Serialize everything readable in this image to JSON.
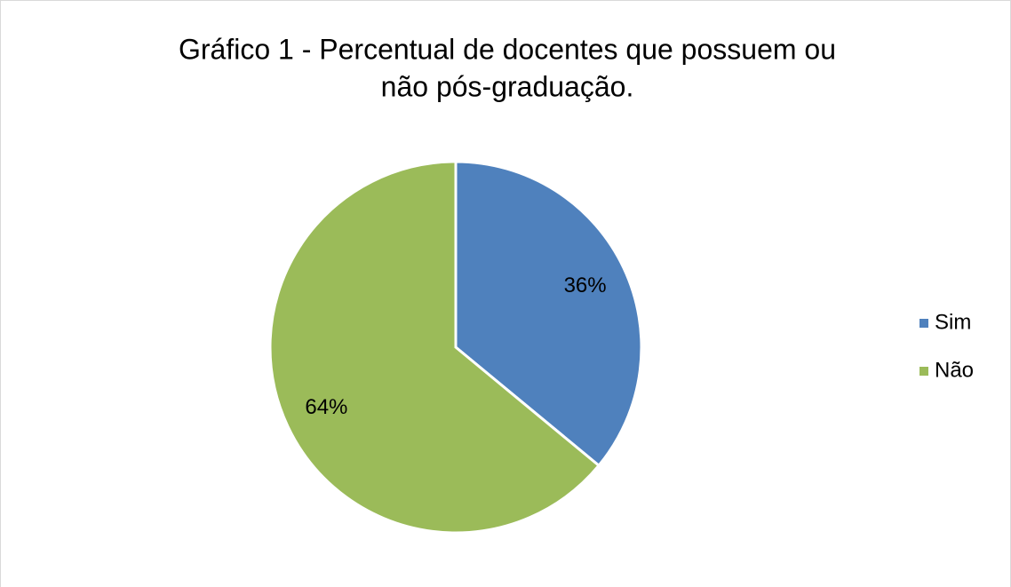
{
  "chart_data": {
    "type": "pie",
    "title": [
      "Gráfico 1 - Percentual de docentes que possuem ou",
      "não pós-graduação."
    ],
    "categories": [
      "Sim",
      "Não"
    ],
    "values": [
      36,
      64
    ],
    "value_labels": [
      "36%",
      "64%"
    ],
    "colors": [
      "#4f81bd",
      "#9bbb59"
    ],
    "legend": "right"
  }
}
